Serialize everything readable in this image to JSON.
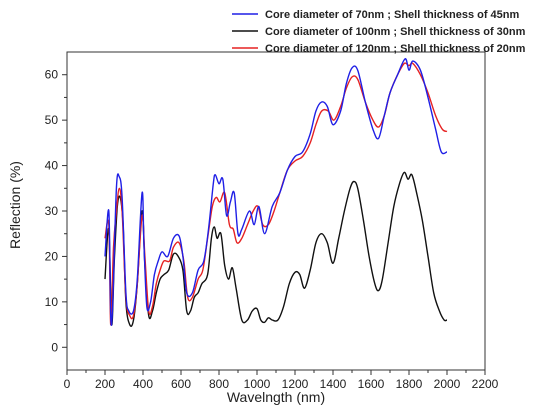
{
  "chart_data": {
    "type": "line",
    "title": "",
    "xlabel": "Wavelngth (nm)",
    "ylabel": "Reflection (%)",
    "xlim": [
      0,
      2200
    ],
    "ylim": [
      -5,
      65
    ],
    "xticks": [
      0,
      200,
      400,
      600,
      800,
      1000,
      1200,
      1400,
      1600,
      1800,
      2000,
      2200
    ],
    "yticks": [
      0,
      10,
      20,
      30,
      40,
      50,
      60
    ],
    "grid": false,
    "legend_position": "top-right",
    "series": [
      {
        "name": "Core diameter of 70nm ; Shell thickness of 45nm",
        "color": "#1f1fe6",
        "points": [
          [
            200,
            20
          ],
          [
            220,
            30
          ],
          [
            230,
            7
          ],
          [
            240,
            9
          ],
          [
            260,
            35
          ],
          [
            275,
            37.5
          ],
          [
            290,
            33
          ],
          [
            310,
            12
          ],
          [
            325,
            8
          ],
          [
            350,
            8
          ],
          [
            370,
            15
          ],
          [
            395,
            34
          ],
          [
            405,
            23
          ],
          [
            420,
            9
          ],
          [
            440,
            10
          ],
          [
            460,
            16
          ],
          [
            480,
            19
          ],
          [
            500,
            21
          ],
          [
            530,
            20
          ],
          [
            560,
            24
          ],
          [
            590,
            24.5
          ],
          [
            610,
            20
          ],
          [
            630,
            12
          ],
          [
            660,
            12
          ],
          [
            690,
            17
          ],
          [
            720,
            19
          ],
          [
            745,
            26
          ],
          [
            770,
            36
          ],
          [
            780,
            38
          ],
          [
            800,
            36
          ],
          [
            820,
            37
          ],
          [
            840,
            29
          ],
          [
            860,
            32
          ],
          [
            880,
            34
          ],
          [
            900,
            25
          ],
          [
            920,
            26
          ],
          [
            960,
            30
          ],
          [
            985,
            27
          ],
          [
            1010,
            31
          ],
          [
            1040,
            25
          ],
          [
            1080,
            31
          ],
          [
            1120,
            34
          ],
          [
            1160,
            39
          ],
          [
            1200,
            42
          ],
          [
            1240,
            43
          ],
          [
            1280,
            47
          ],
          [
            1310,
            52
          ],
          [
            1340,
            54
          ],
          [
            1370,
            53
          ],
          [
            1400,
            49
          ],
          [
            1440,
            52
          ],
          [
            1470,
            58
          ],
          [
            1500,
            61.5
          ],
          [
            1530,
            61
          ],
          [
            1570,
            54
          ],
          [
            1610,
            48
          ],
          [
            1640,
            46
          ],
          [
            1670,
            51
          ],
          [
            1700,
            56
          ],
          [
            1740,
            60
          ],
          [
            1780,
            63.5
          ],
          [
            1800,
            61
          ],
          [
            1820,
            63
          ],
          [
            1860,
            61
          ],
          [
            1900,
            55
          ],
          [
            1940,
            48
          ],
          [
            1970,
            43
          ],
          [
            2000,
            43
          ]
        ]
      },
      {
        "name": "Core diameter of 100nm ; Shell thickness of 30nm",
        "color": "#111111",
        "points": [
          [
            200,
            15
          ],
          [
            220,
            26
          ],
          [
            235,
            5
          ],
          [
            250,
            20
          ],
          [
            265,
            31
          ],
          [
            280,
            33
          ],
          [
            295,
            27
          ],
          [
            310,
            10
          ],
          [
            330,
            5
          ],
          [
            350,
            6
          ],
          [
            370,
            14
          ],
          [
            395,
            30
          ],
          [
            410,
            18
          ],
          [
            430,
            7
          ],
          [
            450,
            8
          ],
          [
            470,
            12
          ],
          [
            490,
            15
          ],
          [
            510,
            16
          ],
          [
            535,
            17
          ],
          [
            560,
            20.5
          ],
          [
            585,
            20
          ],
          [
            610,
            17
          ],
          [
            630,
            8
          ],
          [
            650,
            8
          ],
          [
            670,
            11
          ],
          [
            690,
            12
          ],
          [
            710,
            14
          ],
          [
            740,
            16
          ],
          [
            760,
            24
          ],
          [
            775,
            26.5
          ],
          [
            790,
            24
          ],
          [
            810,
            25
          ],
          [
            830,
            18
          ],
          [
            850,
            15
          ],
          [
            870,
            17.5
          ],
          [
            890,
            13
          ],
          [
            920,
            6
          ],
          [
            950,
            6
          ],
          [
            975,
            8
          ],
          [
            1000,
            8.5
          ],
          [
            1020,
            6
          ],
          [
            1040,
            5.5
          ],
          [
            1060,
            6.5
          ],
          [
            1080,
            6
          ],
          [
            1110,
            6
          ],
          [
            1140,
            9
          ],
          [
            1170,
            14
          ],
          [
            1200,
            16.5
          ],
          [
            1225,
            16
          ],
          [
            1250,
            13
          ],
          [
            1280,
            17
          ],
          [
            1310,
            23
          ],
          [
            1340,
            25
          ],
          [
            1370,
            23
          ],
          [
            1400,
            18.5
          ],
          [
            1430,
            24
          ],
          [
            1460,
            30
          ],
          [
            1490,
            35
          ],
          [
            1510,
            36.5
          ],
          [
            1530,
            35
          ],
          [
            1560,
            28
          ],
          [
            1590,
            20
          ],
          [
            1620,
            14
          ],
          [
            1640,
            12.5
          ],
          [
            1660,
            15
          ],
          [
            1690,
            23
          ],
          [
            1720,
            31
          ],
          [
            1750,
            36
          ],
          [
            1775,
            38.5
          ],
          [
            1795,
            37
          ],
          [
            1815,
            38
          ],
          [
            1840,
            34
          ],
          [
            1870,
            28
          ],
          [
            1900,
            20
          ],
          [
            1930,
            12
          ],
          [
            1960,
            8
          ],
          [
            1985,
            6
          ],
          [
            2000,
            6
          ]
        ]
      },
      {
        "name": "Core diameter of 120nm ; Shell thickness of 20nm",
        "color": "#e62222",
        "points": [
          [
            200,
            24
          ],
          [
            220,
            27
          ],
          [
            230,
            5
          ],
          [
            245,
            22
          ],
          [
            260,
            30
          ],
          [
            275,
            35
          ],
          [
            290,
            30
          ],
          [
            310,
            11
          ],
          [
            330,
            7
          ],
          [
            350,
            7
          ],
          [
            370,
            14
          ],
          [
            395,
            29
          ],
          [
            410,
            20
          ],
          [
            430,
            8
          ],
          [
            450,
            9
          ],
          [
            470,
            14
          ],
          [
            490,
            17
          ],
          [
            510,
            19
          ],
          [
            540,
            19
          ],
          [
            560,
            22
          ],
          [
            590,
            23
          ],
          [
            615,
            19
          ],
          [
            635,
            11
          ],
          [
            660,
            11
          ],
          [
            690,
            15
          ],
          [
            715,
            17
          ],
          [
            740,
            24
          ],
          [
            765,
            31
          ],
          [
            785,
            33
          ],
          [
            805,
            32
          ],
          [
            830,
            34
          ],
          [
            855,
            27
          ],
          [
            875,
            26
          ],
          [
            895,
            23
          ],
          [
            920,
            24
          ],
          [
            950,
            27
          ],
          [
            980,
            30
          ],
          [
            1005,
            31
          ],
          [
            1030,
            27
          ],
          [
            1060,
            27
          ],
          [
            1090,
            30
          ],
          [
            1120,
            34
          ],
          [
            1160,
            39
          ],
          [
            1200,
            41
          ],
          [
            1240,
            42
          ],
          [
            1280,
            45
          ],
          [
            1310,
            49
          ],
          [
            1340,
            52
          ],
          [
            1375,
            52
          ],
          [
            1405,
            50
          ],
          [
            1440,
            53
          ],
          [
            1470,
            57
          ],
          [
            1500,
            59.5
          ],
          [
            1530,
            59
          ],
          [
            1570,
            54
          ],
          [
            1610,
            50
          ],
          [
            1640,
            48.5
          ],
          [
            1670,
            51
          ],
          [
            1700,
            56
          ],
          [
            1740,
            60
          ],
          [
            1775,
            62.5
          ],
          [
            1800,
            62
          ],
          [
            1820,
            62.5
          ],
          [
            1860,
            60
          ],
          [
            1900,
            56
          ],
          [
            1940,
            51
          ],
          [
            1975,
            48
          ],
          [
            2000,
            47.5
          ]
        ]
      }
    ]
  }
}
